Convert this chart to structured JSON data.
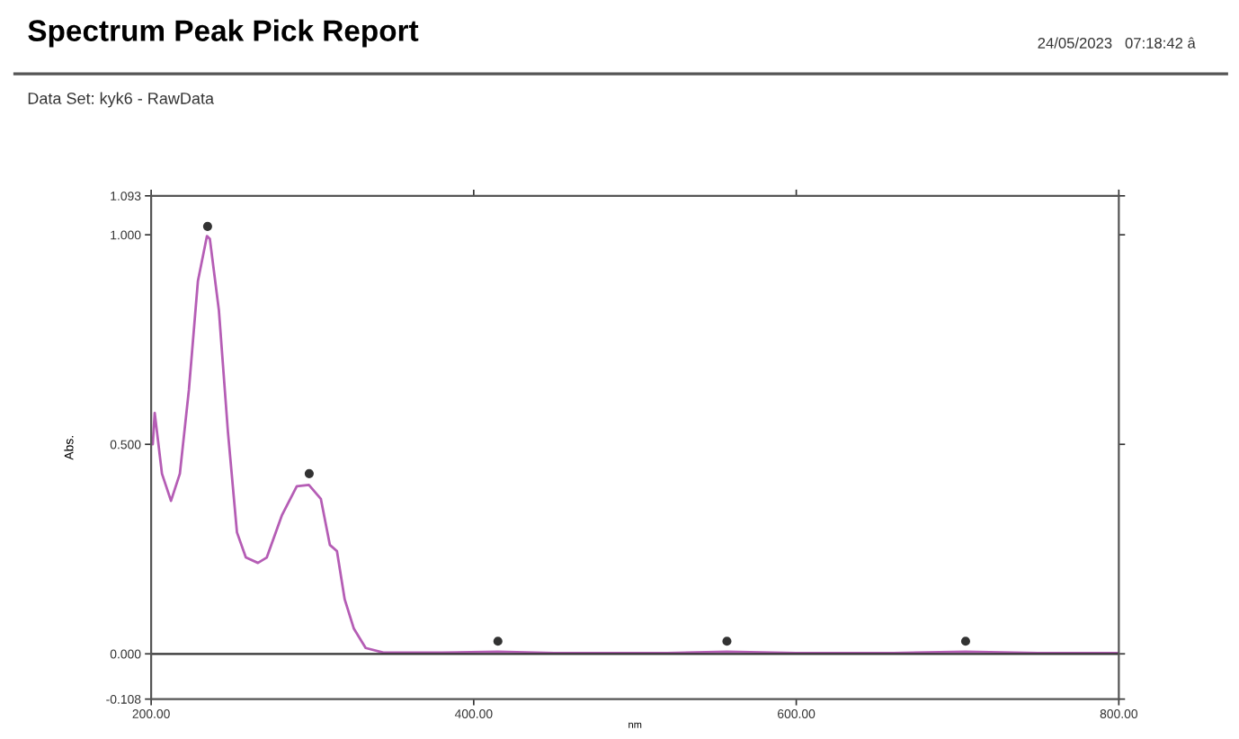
{
  "chart_data": {
    "type": "line",
    "title": "Spectrum Peak Pick Report",
    "subtitle": "Data Set: kyk6 - RawData",
    "annotations": [
      "24/05/2023   07:18:42 â"
    ],
    "xlabel": "nm",
    "ylabel": "Abs.",
    "series": [
      {
        "color": "#b55db5",
        "x": [
          200,
          201,
          202.2,
          206.7,
          212.3,
          217.8,
          223.4,
          229,
          234.6,
          236.4,
          242,
          247.6,
          253.2,
          258.7,
          266.2,
          271.7,
          281,
          290.3,
          297.8,
          305.2,
          310.8,
          315.2,
          320,
          325.7,
          333,
          344,
          380,
          415,
          450,
          520,
          557,
          600,
          660,
          705,
          750,
          800
        ],
        "values": [
          0.5,
          0.5,
          0.575,
          0.43,
          0.365,
          0.43,
          0.63,
          0.89,
          0.997,
          0.99,
          0.82,
          0.53,
          0.29,
          0.23,
          0.217,
          0.23,
          0.33,
          0.4,
          0.403,
          0.37,
          0.26,
          0.245,
          0.13,
          0.06,
          0.014,
          0.003,
          0.003,
          0.005,
          0.002,
          0.002,
          0.005,
          0.002,
          0.002,
          0.005,
          0.002,
          0.002
        ]
      },
      {
        "type": "scatter",
        "color": "#333333",
        "marker": "circle",
        "x": [
          235,
          298,
          415,
          557,
          705
        ],
        "values": [
          1.02,
          0.43,
          0.03,
          0.03,
          0.03
        ]
      }
    ],
    "xlim": [
      200,
      800
    ],
    "xticks": [
      {
        "value": 200,
        "label": "200.00"
      },
      {
        "value": 400,
        "label": "400.00"
      },
      {
        "value": 600,
        "label": "600.00"
      },
      {
        "value": 800,
        "label": "800.00"
      }
    ],
    "ylim": [
      -0.108,
      1.093
    ],
    "yticks": [
      {
        "value": -0.108,
        "label": "-0.108"
      },
      {
        "value": 0,
        "label": "0.000"
      },
      {
        "value": 0.5,
        "label": "0.500"
      },
      {
        "value": 1.0,
        "label": "1.000"
      },
      {
        "value": 1.093,
        "label": "1.093"
      }
    ],
    "ref_lines": [
      {
        "axis": "y",
        "value": 0,
        "color": "#333333"
      }
    ],
    "grid": false,
    "legend": false
  }
}
